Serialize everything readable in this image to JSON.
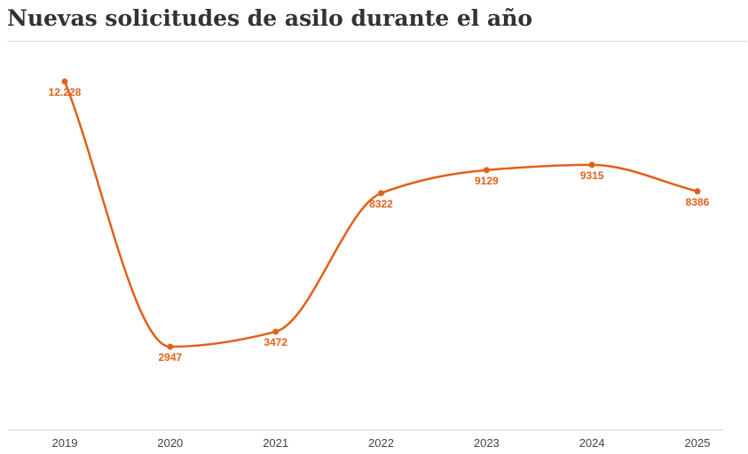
{
  "chart_data": {
    "type": "line",
    "title": "Nuevas solicitudes de asilo durante el año",
    "xlabel": "",
    "ylabel": "",
    "categories": [
      "2019",
      "2020",
      "2021",
      "2022",
      "2023",
      "2024",
      "2025"
    ],
    "series": [
      {
        "name": "Nuevas solicitudes de asilo",
        "values": [
          12228,
          2947,
          3472,
          8322,
          9129,
          9315,
          8386
        ],
        "labels": [
          "12.228",
          "2947",
          "3472",
          "8322",
          "9129",
          "9315",
          "8386"
        ],
        "color": "#e0611b"
      }
    ],
    "ylim": [
      -1200,
      12800
    ],
    "grid": false,
    "legend": "none"
  },
  "colors": {
    "series": "#e0611b",
    "label": "#e0611b",
    "axis": "#d0d0d0",
    "title": "#333333",
    "tick": "#444444"
  }
}
